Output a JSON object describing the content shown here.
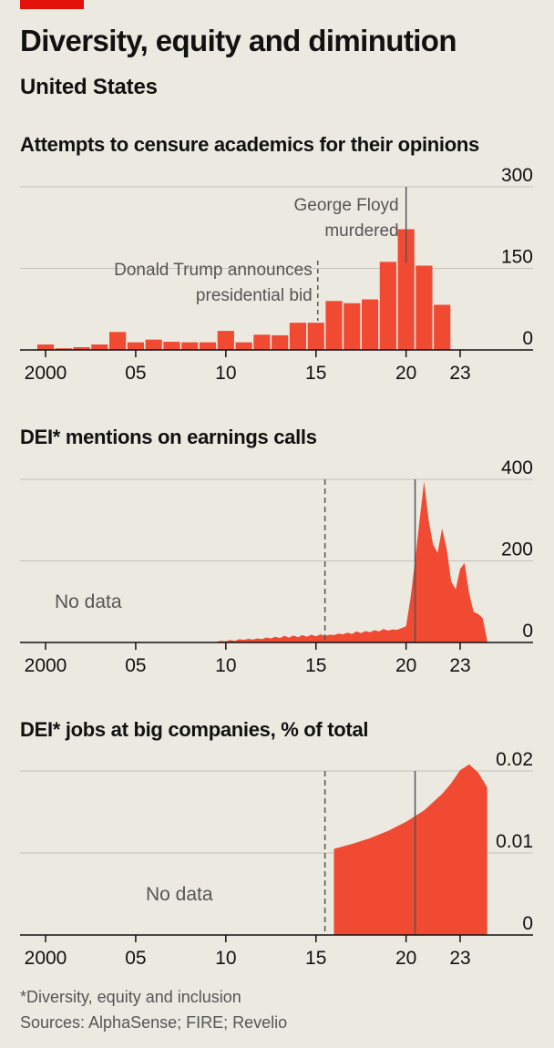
{
  "header": {
    "title": "Diversity, equity and diminution",
    "subtitle": "United States"
  },
  "colors": {
    "accent": "#e3120b",
    "bars": "#f04a32",
    "grid": "#c4c2b9",
    "axis": "#111111",
    "text_muted": "#555555",
    "background": "#ebe9e0"
  },
  "chart_data": [
    {
      "type": "bar",
      "title": "Attempts to censure academics for their opinions",
      "x_ticks": [
        "2000",
        "05",
        "10",
        "15",
        "20",
        "23"
      ],
      "y_ticks": [
        "300",
        "150",
        "0"
      ],
      "ylim": [
        0,
        300
      ],
      "grid": true,
      "categories": [
        2000,
        2001,
        2002,
        2003,
        2004,
        2005,
        2006,
        2007,
        2008,
        2009,
        2010,
        2011,
        2012,
        2013,
        2014,
        2015,
        2016,
        2017,
        2018,
        2019,
        2020,
        2021,
        2022,
        2023
      ],
      "values": [
        10,
        3,
        5,
        10,
        33,
        14,
        19,
        15,
        14,
        14,
        35,
        14,
        28,
        27,
        50,
        50,
        90,
        86,
        93,
        162,
        222,
        155,
        83,
        0
      ],
      "annotations": [
        {
          "x": 2015,
          "text_lines": [
            "Donald Trump announces",
            "presidential bid"
          ],
          "style": "dashed"
        },
        {
          "x": 2020,
          "text_lines": [
            "George Floyd",
            "murdered"
          ],
          "style": "solid"
        }
      ]
    },
    {
      "type": "area",
      "title": "DEI* mentions on earnings calls",
      "x_ticks": [
        "2000",
        "05",
        "10",
        "15",
        "20",
        "23"
      ],
      "y_ticks": [
        "400",
        "200",
        "0"
      ],
      "ylim": [
        0,
        400
      ],
      "no_data_label": "No data",
      "x": [
        2009.5,
        2009.75,
        2010,
        2010.25,
        2010.5,
        2010.75,
        2011,
        2011.25,
        2011.5,
        2011.75,
        2012,
        2012.25,
        2012.5,
        2012.75,
        2013,
        2013.25,
        2013.5,
        2013.75,
        2014,
        2014.25,
        2014.5,
        2014.75,
        2015,
        2015.25,
        2015.5,
        2015.75,
        2016,
        2016.25,
        2016.5,
        2016.75,
        2017,
        2017.25,
        2017.5,
        2017.75,
        2018,
        2018.25,
        2018.5,
        2018.75,
        2019,
        2019.25,
        2019.5,
        2019.75,
        2020,
        2020.25,
        2020.5,
        2020.75,
        2021,
        2021.25,
        2021.5,
        2021.75,
        2022,
        2022.25,
        2022.5,
        2022.75,
        2023,
        2023.25,
        2023.5,
        2023.75,
        2024,
        2024.25,
        2024.5
      ],
      "values": [
        2,
        4,
        3,
        6,
        4,
        8,
        6,
        9,
        7,
        10,
        8,
        12,
        10,
        14,
        11,
        16,
        12,
        17,
        13,
        18,
        14,
        19,
        15,
        20,
        16,
        19,
        18,
        22,
        20,
        24,
        21,
        27,
        23,
        28,
        25,
        30,
        27,
        33,
        29,
        32,
        31,
        35,
        40,
        110,
        200,
        300,
        395,
        300,
        240,
        220,
        280,
        230,
        150,
        130,
        180,
        195,
        120,
        75,
        70,
        60,
        5
      ],
      "annotations": [
        {
          "x": 2015.5,
          "style": "dashed"
        },
        {
          "x": 2020.5,
          "style": "solid"
        }
      ]
    },
    {
      "type": "area",
      "title": "DEI* jobs at big companies, % of total",
      "x_ticks": [
        "2000",
        "05",
        "10",
        "15",
        "20",
        "23"
      ],
      "y_ticks": [
        "0.02",
        "0.01",
        "0"
      ],
      "ylim": [
        0,
        0.02
      ],
      "no_data_label": "No data",
      "x": [
        2016,
        2017,
        2018,
        2019,
        2020,
        2021,
        2022,
        2022.5,
        2023,
        2023.5,
        2024,
        2024.5
      ],
      "values": [
        0.0105,
        0.0111,
        0.0118,
        0.0127,
        0.0138,
        0.0152,
        0.0172,
        0.0185,
        0.0201,
        0.0208,
        0.0198,
        0.018
      ],
      "annotations": [
        {
          "x": 2015.5,
          "style": "dashed"
        },
        {
          "x": 2020.5,
          "style": "solid"
        }
      ]
    }
  ],
  "footnotes": {
    "note": "*Diversity, equity and inclusion",
    "sources": "Sources: AlphaSense; FIRE; Revelio"
  }
}
